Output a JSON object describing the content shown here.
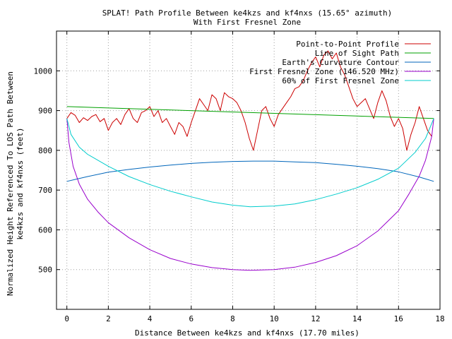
{
  "chart_data": {
    "type": "line",
    "title": "SPLAT! Path Profile Between ke4kzs and kf4nxs (15.65° azimuth)",
    "subtitle": "With First Fresnel Zone",
    "xlabel": "Distance Between ke4kzs and kf4nxs (17.70 miles)",
    "ylabel_line1": "Normalized Height Referenced To LOS Path Between",
    "ylabel_line2": "ke4kzs and kf4nxs (feet)",
    "xlim": [
      -0.5,
      18
    ],
    "ylim": [
      400,
      1100
    ],
    "x_ticks": [
      0,
      2,
      4,
      6,
      8,
      10,
      12,
      14,
      16,
      18
    ],
    "y_ticks": [
      500,
      600,
      700,
      800,
      900,
      1000
    ],
    "grid": true,
    "legend_position": "top-right",
    "series": [
      {
        "name": "Point-to-Point Profile",
        "color": "#cc0000",
        "x": [
          0,
          0.2,
          0.4,
          0.6,
          0.8,
          1.0,
          1.2,
          1.4,
          1.6,
          1.8,
          2.0,
          2.2,
          2.4,
          2.6,
          2.8,
          3.0,
          3.2,
          3.4,
          3.6,
          3.8,
          4.0,
          4.2,
          4.4,
          4.6,
          4.8,
          5.0,
          5.2,
          5.4,
          5.6,
          5.8,
          6.0,
          6.2,
          6.4,
          6.6,
          6.8,
          7.0,
          7.2,
          7.4,
          7.6,
          7.8,
          8.0,
          8.2,
          8.4,
          8.6,
          8.8,
          9.0,
          9.2,
          9.4,
          9.6,
          9.8,
          10.0,
          10.2,
          10.4,
          10.6,
          10.8,
          11.0,
          11.2,
          11.4,
          11.6,
          11.8,
          12.0,
          12.2,
          12.4,
          12.6,
          12.8,
          13.0,
          13.2,
          13.4,
          13.6,
          13.8,
          14.0,
          14.2,
          14.4,
          14.6,
          14.8,
          15.0,
          15.2,
          15.4,
          15.6,
          15.8,
          16.0,
          16.2,
          16.4,
          16.6,
          16.8,
          17.0,
          17.2,
          17.4,
          17.6
        ],
        "values": [
          880,
          895,
          888,
          870,
          882,
          875,
          885,
          890,
          872,
          880,
          850,
          870,
          880,
          865,
          890,
          905,
          880,
          870,
          895,
          900,
          910,
          885,
          900,
          870,
          880,
          860,
          840,
          870,
          860,
          835,
          870,
          900,
          930,
          915,
          900,
          940,
          930,
          900,
          945,
          935,
          930,
          920,
          900,
          870,
          830,
          800,
          850,
          900,
          910,
          880,
          860,
          890,
          905,
          920,
          935,
          955,
          960,
          975,
          1000,
          1020,
          1035,
          1010,
          1040,
          1050,
          1030,
          1045,
          1010,
          990,
          960,
          930,
          910,
          920,
          930,
          905,
          880,
          920,
          950,
          925,
          885,
          860,
          880,
          855,
          800,
          840,
          870,
          910,
          880,
          850,
          835
        ]
      },
      {
        "name": "Line of Sight Path",
        "color": "#00a000",
        "x": [
          0,
          17.7
        ],
        "values": [
          910,
          880
        ]
      },
      {
        "name": "Earth's Curvature Contour",
        "color": "#0066bb",
        "x": [
          0,
          1,
          2,
          3,
          4,
          5,
          6,
          7,
          8,
          9,
          10,
          11,
          12,
          13,
          14,
          15,
          16,
          17,
          17.7
        ],
        "values": [
          722,
          734,
          745,
          752,
          758,
          763,
          767,
          770,
          772,
          773,
          773,
          771,
          769,
          765,
          760,
          754,
          746,
          733,
          722
        ]
      },
      {
        "name": "First Fresnel Zone (146.520 MHz)",
        "color": "#9900cc",
        "x": [
          0,
          0.1,
          0.3,
          0.6,
          1,
          1.5,
          2,
          3,
          4,
          5,
          6,
          7,
          8,
          8.85,
          10,
          11,
          12,
          13,
          14,
          15,
          16,
          16.5,
          17,
          17.3,
          17.6,
          17.7
        ],
        "values": [
          880,
          820,
          760,
          715,
          677,
          645,
          618,
          580,
          550,
          528,
          514,
          505,
          500,
          498,
          500,
          506,
          518,
          535,
          560,
          597,
          648,
          690,
          735,
          775,
          835,
          880
        ]
      },
      {
        "name": "60% of First Fresnel Zone",
        "color": "#00cccc",
        "x": [
          0,
          0.2,
          0.6,
          1,
          2,
          3,
          4,
          5,
          6,
          7,
          8,
          8.85,
          10,
          11,
          12,
          13,
          14,
          15,
          16,
          16.8,
          17.3,
          17.7
        ],
        "values": [
          880,
          840,
          808,
          790,
          760,
          734,
          714,
          697,
          683,
          670,
          662,
          658,
          660,
          665,
          676,
          690,
          706,
          727,
          755,
          795,
          830,
          880
        ]
      }
    ]
  }
}
